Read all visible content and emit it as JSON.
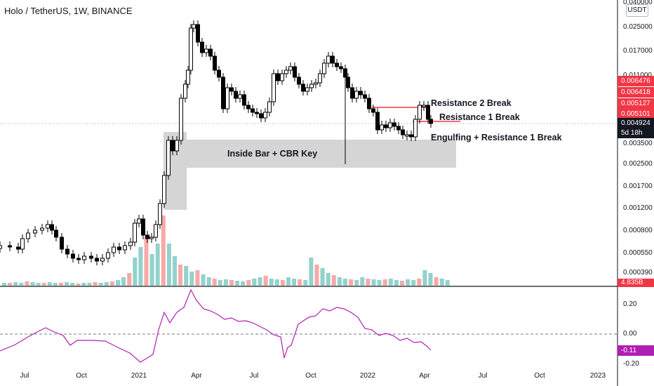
{
  "header": {
    "title": "Holo / TetherUS, 1W, BINANCE",
    "currency_badge": "USDT"
  },
  "price_axis": {
    "labels": [
      "0.040000",
      "0.025000",
      "0.017000",
      "0.011000",
      "0.003500",
      "0.002500",
      "0.001700",
      "0.001200",
      "0.000800",
      "0.000550",
      "0.000390"
    ]
  },
  "price_tags": [
    {
      "name": "price-tag-0.006476",
      "label": "0.006476",
      "color": "#f23645"
    },
    {
      "name": "price-tag-0.006418",
      "label": "0.006418",
      "color": "#f23645"
    },
    {
      "name": "price-tag-0.005127",
      "label": "0.005127",
      "color": "#f23645"
    },
    {
      "name": "price-tag-0.005101",
      "label": "0.005101",
      "color": "#f23645"
    },
    {
      "name": "current-price-tag",
      "label": "0.004924",
      "color": "#131722"
    },
    {
      "name": "countdown-tag",
      "label": "5d 18h",
      "color": "#131722"
    },
    {
      "name": "volume-tag",
      "label": "4.835B",
      "color": "#f23645"
    }
  ],
  "indicator": {
    "axis_labels": [
      "0.20",
      "0.00",
      "-0.20"
    ],
    "current_value": "-0.11",
    "line_color": "#b01fb3"
  },
  "time_axis": [
    "Jul",
    "Oct",
    "2021",
    "Apr",
    "Jul",
    "Oct",
    "2022",
    "Apr",
    "Jul",
    "Oct",
    "2023"
  ],
  "annotations": {
    "zone_label": "Inside Bar + CBR Key",
    "resistance_2": "Resistance 2 Break",
    "resistance_1": "Resistance 1 Break",
    "engulfing": "Engulfing + Resistance 1 Break"
  },
  "colors": {
    "up": "#26a69a",
    "down": "#ef5350",
    "candle": "#000000",
    "zone": "#d5d5d5",
    "resistance": "#f23645"
  }
}
